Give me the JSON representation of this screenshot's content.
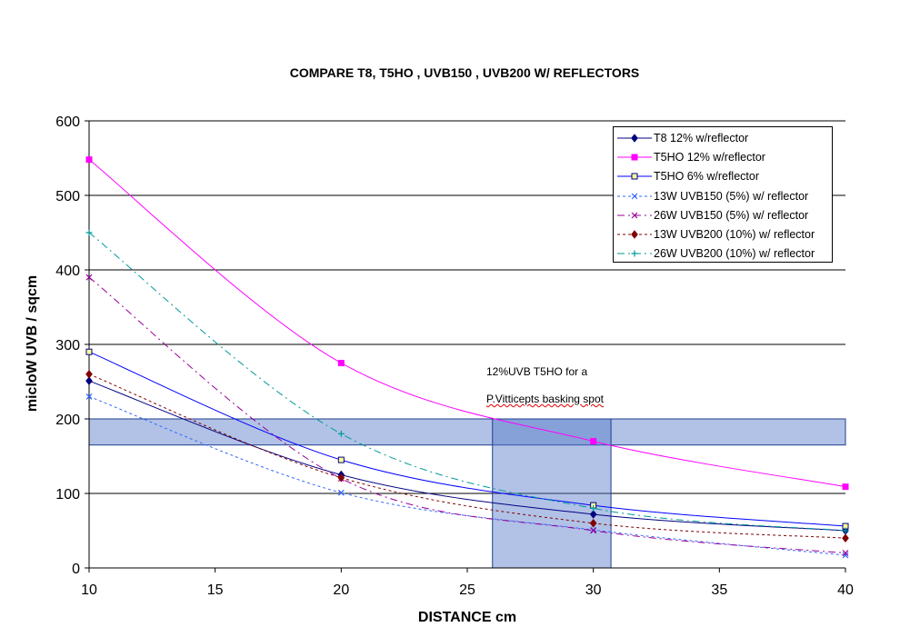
{
  "chart_data": {
    "type": "line",
    "title": "COMPARE T8, T5HO , UVB150 , UVB200 W/ REFLECTORS",
    "xlabel": "DISTANCE cm",
    "ylabel": "micloW UVB / sqcm",
    "xlim": [
      10,
      40
    ],
    "ylim": [
      0,
      600
    ],
    "xticks": [
      10,
      15,
      20,
      25,
      30,
      35,
      40
    ],
    "yticks": [
      0,
      100,
      200,
      300,
      400,
      500,
      600
    ],
    "gridlines": "horizontal",
    "legend_position": "top-right",
    "x": [
      10,
      20,
      30,
      40
    ],
    "series": [
      {
        "name": "T8 12% w/reflector",
        "values": [
          251,
          125,
          72,
          50
        ],
        "color": "#000080",
        "dash": "solid",
        "marker": "diamond"
      },
      {
        "name": "T5HO 12% w/reflector",
        "values": [
          548,
          275,
          170,
          109
        ],
        "color": "#ff00ff",
        "dash": "solid",
        "marker": "square"
      },
      {
        "name": "T5HO 6% w/reflector",
        "values": [
          290,
          145,
          84,
          56
        ],
        "color": "#0000ff",
        "dash": "solid",
        "marker": "square-open"
      },
      {
        "name": "13W UVB150 (5%) w/ reflector",
        "values": [
          230,
          101,
          51,
          17
        ],
        "color": "#3366ff",
        "dash": "dot",
        "marker": "x"
      },
      {
        "name": "26W UVB150 (5%) w/ reflector",
        "values": [
          390,
          120,
          50,
          20
        ],
        "color": "#990099",
        "dash": "dashdot",
        "marker": "x"
      },
      {
        "name": "13W UVB200 (10%) w/ reflector",
        "values": [
          260,
          121,
          60,
          40
        ],
        "color": "#800000",
        "dash": "dot",
        "marker": "diamond"
      },
      {
        "name": "26W UVB200 (10%) w/ reflector",
        "values": [
          450,
          180,
          80,
          50
        ],
        "color": "#009999",
        "dash": "dashdot",
        "marker": "plus"
      }
    ],
    "highlight_bands": [
      {
        "orientation": "horizontal",
        "from": 165,
        "to": 200
      },
      {
        "orientation": "vertical",
        "from": 26,
        "to": 30.7
      }
    ],
    "annotations": [
      "12%UVB T5HO for a",
      "P.Vitticepts basking spot"
    ]
  }
}
